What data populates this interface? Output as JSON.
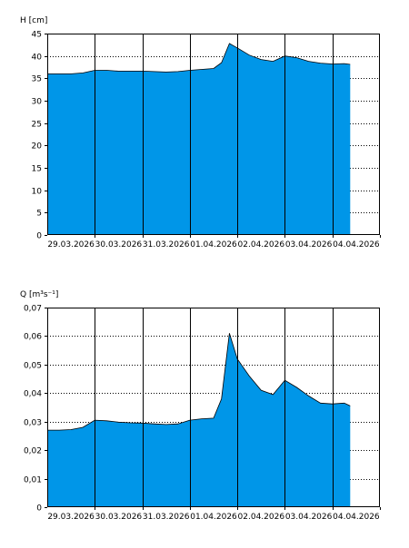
{
  "colors": {
    "fill": "#0096E8",
    "line": "#000000",
    "grid": "#000000",
    "background": "#ffffff"
  },
  "chart_data": [
    {
      "type": "area",
      "ylabel": "H [cm]",
      "ylim": [
        0,
        45
      ],
      "yticks": [
        0,
        5,
        10,
        15,
        20,
        25,
        30,
        35,
        40,
        45
      ],
      "ytick_labels": [
        "0",
        "5",
        "10",
        "15",
        "20",
        "25",
        "30",
        "35",
        "40",
        "45"
      ],
      "xlim": [
        "2026-03-29T00:00",
        "2026-04-05T00:00"
      ],
      "xtick_labels": [
        "29.03.2026",
        "30.03.2026",
        "31.03.2026",
        "01.04.2026",
        "02.04.2026",
        "03.04.2026",
        "04.04.2026"
      ],
      "grid": true,
      "legend": "none",
      "series": [
        {
          "x": [
            "2026-03-29T00:00",
            "2026-03-29T06:00",
            "2026-03-29T12:00",
            "2026-03-29T18:00",
            "2026-03-30T00:00",
            "2026-03-30T06:00",
            "2026-03-30T12:00",
            "2026-03-30T18:00",
            "2026-03-31T00:00",
            "2026-03-31T06:00",
            "2026-03-31T12:00",
            "2026-03-31T18:00",
            "2026-04-01T00:00",
            "2026-04-01T06:00",
            "2026-04-01T12:00",
            "2026-04-01T16:00",
            "2026-04-01T20:00",
            "2026-04-02T00:00",
            "2026-04-02T06:00",
            "2026-04-02T12:00",
            "2026-04-02T18:00",
            "2026-04-03T00:00",
            "2026-04-03T06:00",
            "2026-04-03T12:00",
            "2026-04-03T18:00",
            "2026-04-04T00:00",
            "2026-04-04T06:00",
            "2026-04-04T09:00"
          ],
          "y": [
            36,
            36,
            36,
            36.2,
            36.8,
            36.8,
            36.6,
            36.6,
            36.6,
            36.5,
            36.4,
            36.5,
            36.8,
            37,
            37.2,
            38.5,
            42.8,
            41.8,
            40.2,
            39.2,
            38.8,
            40,
            39.6,
            38.8,
            38.4,
            38.2,
            38.3,
            38.1
          ]
        }
      ]
    },
    {
      "type": "area",
      "ylabel": "Q [m³s⁻¹]",
      "ylim": [
        0,
        0.07
      ],
      "yticks": [
        0,
        0.01,
        0.02,
        0.03,
        0.04,
        0.05,
        0.06,
        0.07
      ],
      "ytick_labels": [
        "0",
        "0,01",
        "0,02",
        "0,03",
        "0,04",
        "0,05",
        "0,06",
        "0,07"
      ],
      "xlim": [
        "2026-03-29T00:00",
        "2026-04-05T00:00"
      ],
      "xtick_labels": [
        "29.03.2026",
        "30.03.2026",
        "31.03.2026",
        "01.04.2026",
        "02.04.2026",
        "03.04.2026",
        "04.04.2026"
      ],
      "grid": true,
      "legend": "none",
      "series": [
        {
          "x": [
            "2026-03-29T00:00",
            "2026-03-29T06:00",
            "2026-03-29T12:00",
            "2026-03-29T18:00",
            "2026-03-30T00:00",
            "2026-03-30T06:00",
            "2026-03-30T12:00",
            "2026-03-30T18:00",
            "2026-03-31T00:00",
            "2026-03-31T06:00",
            "2026-03-31T12:00",
            "2026-03-31T18:00",
            "2026-04-01T00:00",
            "2026-04-01T06:00",
            "2026-04-01T12:00",
            "2026-04-01T16:00",
            "2026-04-01T20:00",
            "2026-04-02T00:00",
            "2026-04-02T06:00",
            "2026-04-02T12:00",
            "2026-04-02T18:00",
            "2026-04-03T00:00",
            "2026-04-03T06:00",
            "2026-04-03T12:00",
            "2026-04-03T18:00",
            "2026-04-04T00:00",
            "2026-04-04T06:00",
            "2026-04-04T09:00"
          ],
          "y": [
            0.027,
            0.027,
            0.0272,
            0.028,
            0.0305,
            0.0303,
            0.0298,
            0.0296,
            0.0295,
            0.0292,
            0.029,
            0.0292,
            0.0305,
            0.031,
            0.0312,
            0.038,
            0.061,
            0.052,
            0.046,
            0.041,
            0.0395,
            0.0445,
            0.042,
            0.039,
            0.0365,
            0.0362,
            0.0365,
            0.0355
          ]
        }
      ]
    }
  ]
}
